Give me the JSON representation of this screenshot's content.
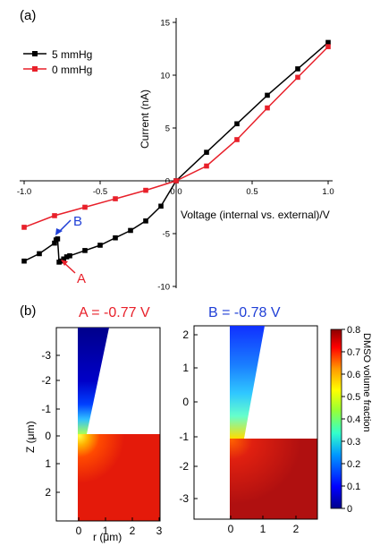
{
  "panel_a": {
    "panel_label": "(a)",
    "chart_data": {
      "type": "line",
      "xlabel": "Voltage (internal vs. external)/V",
      "ylabel": "Current (nA)",
      "xlim": [
        -1.05,
        1.05
      ],
      "ylim": [
        -10,
        15
      ],
      "x_ticks": [
        -1.0,
        -0.5,
        0.0,
        0.5,
        1.0
      ],
      "x_tick_labels": [
        "-1.0",
        "-0.5",
        "0.0",
        "0.5",
        "1.0"
      ],
      "y_ticks": [
        -10,
        -5,
        0,
        5,
        10,
        15
      ],
      "y_tick_labels": [
        "-10",
        "-5",
        "0",
        "5",
        "10",
        "15"
      ],
      "legend_position": "top-left",
      "grid": false,
      "series": [
        {
          "name": "5 mmHg",
          "color": "#000000",
          "marker": "square",
          "points": [
            [
              -1.0,
              -7.6
            ],
            [
              -0.9,
              -6.9
            ],
            [
              -0.8,
              -5.9
            ],
            [
              -0.79,
              -5.6
            ],
            [
              -0.78,
              -5.5
            ],
            [
              -0.77,
              -7.7
            ],
            [
              -0.76,
              -7.6
            ],
            [
              -0.74,
              -7.4
            ],
            [
              -0.72,
              -7.2
            ],
            [
              -0.7,
              -7.1
            ],
            [
              -0.6,
              -6.6
            ],
            [
              -0.5,
              -6.1
            ],
            [
              -0.4,
              -5.4
            ],
            [
              -0.3,
              -4.7
            ],
            [
              -0.2,
              -3.8
            ],
            [
              -0.1,
              -2.4
            ],
            [
              0.0,
              0.0
            ],
            [
              0.2,
              2.7
            ],
            [
              0.4,
              5.4
            ],
            [
              0.6,
              8.1
            ],
            [
              0.8,
              10.6
            ],
            [
              1.0,
              13.1
            ]
          ]
        },
        {
          "name": "0 mmHg",
          "color": "#e8202a",
          "marker": "square",
          "points": [
            [
              -1.0,
              -4.4
            ],
            [
              -0.8,
              -3.3
            ],
            [
              -0.6,
              -2.5
            ],
            [
              -0.4,
              -1.7
            ],
            [
              -0.2,
              -0.9
            ],
            [
              0.0,
              0.0
            ],
            [
              0.2,
              1.4
            ],
            [
              0.4,
              3.9
            ],
            [
              0.6,
              6.9
            ],
            [
              0.8,
              9.8
            ],
            [
              1.0,
              12.7
            ]
          ]
        }
      ],
      "annotations": [
        {
          "text": "A",
          "color": "#e8202a",
          "target": [
            -0.77,
            -7.7
          ]
        },
        {
          "text": "B",
          "color": "#1f3fd6",
          "target": [
            -0.78,
            -5.5
          ]
        }
      ]
    }
  },
  "panel_b": {
    "panel_label": "(b)",
    "left_title": "A = -0.77 V",
    "left_title_color": "#e8202a",
    "right_title": "B = -0.78 V",
    "right_title_color": "#1f3fd6",
    "left_map": {
      "xlabel": "r (μm)",
      "ylabel": "Z (μm)",
      "x_tick_labels": [
        "0",
        "1",
        "2",
        "3"
      ],
      "y_tick_labels": [
        "-3",
        "-2",
        "-1",
        "0",
        "1",
        "2"
      ]
    },
    "right_map": {
      "x_tick_labels": [
        "0",
        "1",
        "2"
      ],
      "y_tick_labels": [
        "2",
        "1",
        "0",
        "-1",
        "-2",
        "-3"
      ]
    },
    "colorbar": {
      "label": "DMSO volume fraction",
      "range": [
        0,
        0.8
      ],
      "tick_labels": [
        "0.8",
        "0.7",
        "0.6",
        "0.5",
        "0.4",
        "0.3",
        "0.2",
        "0.1",
        "0"
      ],
      "colormap": [
        "#00008b",
        "#0000ff",
        "#0099ff",
        "#33ffcc",
        "#99ff33",
        "#ffff00",
        "#ff9900",
        "#ff0000",
        "#8b0000"
      ]
    }
  }
}
